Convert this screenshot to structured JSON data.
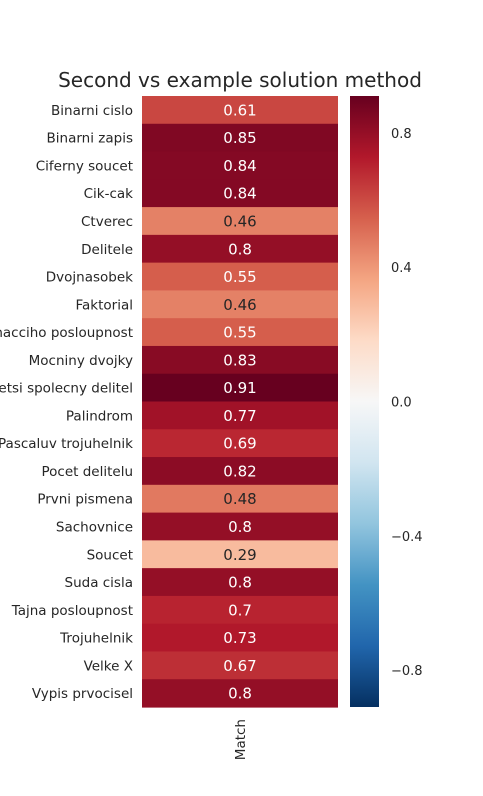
{
  "chart_data": {
    "type": "heatmap",
    "title": "Second vs example solution method",
    "xlabel": "",
    "ylabel": "",
    "columns": [
      "Match"
    ],
    "rows": [
      {
        "label": "Binarni cislo",
        "value": 0.61
      },
      {
        "label": "Binarni zapis",
        "value": 0.85
      },
      {
        "label": "Ciferny soucet",
        "value": 0.84
      },
      {
        "label": "Cik-cak",
        "value": 0.84
      },
      {
        "label": "Ctverec",
        "value": 0.46
      },
      {
        "label": "Delitele",
        "value": 0.8
      },
      {
        "label": "Dvojnasobek",
        "value": 0.55
      },
      {
        "label": "Faktorial",
        "value": 0.46
      },
      {
        "label": "Fibonacciho posloupnost",
        "value": 0.55
      },
      {
        "label": "Mocniny dvojky",
        "value": 0.83
      },
      {
        "label": "Nejvetsi spolecny delitel",
        "value": 0.91
      },
      {
        "label": "Palindrom",
        "value": 0.77
      },
      {
        "label": "Pascaluv trojuhelnik",
        "value": 0.69
      },
      {
        "label": "Pocet delitelu",
        "value": 0.82
      },
      {
        "label": "Prvni pismena",
        "value": 0.48
      },
      {
        "label": "Sachovnice",
        "value": 0.8
      },
      {
        "label": "Soucet",
        "value": 0.29
      },
      {
        "label": "Suda cisla",
        "value": 0.8
      },
      {
        "label": "Tajna posloupnost",
        "value": 0.7
      },
      {
        "label": "Trojuhelnik",
        "value": 0.73
      },
      {
        "label": "Velke X",
        "value": 0.67
      },
      {
        "label": "Vypis prvocisel",
        "value": 0.8
      }
    ],
    "colormap": "RdBu_r",
    "vmin": -0.91,
    "vmax": 0.91,
    "colorbar_ticks": [
      0.8,
      0.4,
      0.0,
      -0.4,
      -0.8
    ],
    "colorbar_tick_labels": [
      "0.8",
      "0.4",
      "0.0",
      "−0.4",
      "−0.8"
    ],
    "colorbar_position": "right",
    "grid": false
  }
}
